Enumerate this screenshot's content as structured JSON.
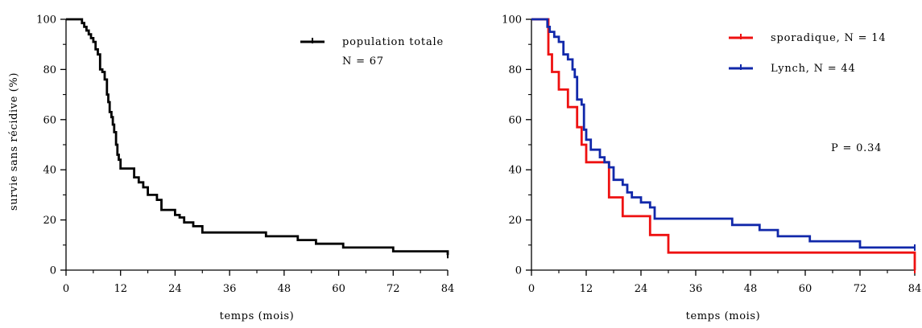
{
  "chart_data": [
    {
      "type": "line",
      "step": true,
      "title": "",
      "xlabel": "temps (mois)",
      "ylabel": "survie sans récidive (%)",
      "xlim": [
        0,
        84
      ],
      "ylim": [
        0,
        100
      ],
      "xticks": [
        "0",
        "12",
        "24",
        "36",
        "48",
        "60",
        "72",
        "84"
      ],
      "yticks": [
        "0",
        "20",
        "40",
        "60",
        "80",
        "100"
      ],
      "legend_position": "top-right",
      "annotation": "",
      "series": [
        {
          "name": "population totale",
          "name_line2": "N = 67",
          "color": "#000000",
          "x": [
            0,
            3,
            3.5,
            4,
            4.5,
            5,
            5.5,
            6,
            6.5,
            7,
            7.5,
            8,
            8.5,
            9,
            9.3,
            9.6,
            10,
            10.3,
            10.6,
            11,
            11.3,
            11.6,
            12,
            12.5,
            15,
            16,
            17,
            18,
            20,
            21,
            24,
            25,
            26,
            28,
            30,
            44,
            51,
            55,
            61,
            72,
            84
          ],
          "y": [
            100,
            100,
            98.5,
            97,
            95.5,
            94,
            92.5,
            91,
            88,
            86,
            80,
            79,
            76,
            70,
            67,
            63,
            61,
            58,
            55,
            50,
            46,
            44,
            40.5,
            40.5,
            37,
            35,
            33,
            30,
            28,
            24,
            22,
            21,
            19,
            17.5,
            15,
            13.5,
            12,
            10.5,
            9,
            7.5,
            6
          ]
        }
      ]
    },
    {
      "type": "line",
      "step": true,
      "title": "",
      "xlabel": "temps (mois)",
      "ylabel": "",
      "xlim": [
        0,
        84
      ],
      "ylim": [
        0,
        100
      ],
      "xticks": [
        "0",
        "12",
        "24",
        "36",
        "48",
        "60",
        "72",
        "84"
      ],
      "yticks": [
        "0",
        "20",
        "40",
        "60",
        "80",
        "100"
      ],
      "legend_position": "top-right",
      "annotation": "P = 0.34",
      "series": [
        {
          "name": "sporadique, N = 14",
          "color": "#ee1111",
          "x": [
            0,
            3,
            3.7,
            4.5,
            6,
            8,
            10,
            11,
            12,
            16,
            17,
            20,
            26,
            30,
            84
          ],
          "y": [
            100,
            100,
            86,
            79,
            72,
            65,
            57,
            50,
            43,
            43,
            29,
            21.5,
            14,
            7,
            0
          ]
        },
        {
          "name": "Lynch, N = 44",
          "color": "#1128aa",
          "x": [
            0,
            3,
            3.5,
            4,
            5,
            6,
            7,
            8,
            9,
            9.5,
            10,
            11,
            11.5,
            12,
            13,
            15,
            16,
            17,
            18,
            20,
            21,
            22,
            24,
            26,
            27,
            44,
            50,
            54,
            61,
            72,
            84
          ],
          "y": [
            100,
            100,
            97,
            95,
            93,
            91,
            86,
            84,
            80,
            77,
            68,
            66,
            56,
            52,
            48,
            45,
            43,
            41,
            36,
            34,
            31,
            29,
            27,
            25,
            20.5,
            18,
            16,
            13.5,
            11.5,
            9,
            9
          ]
        }
      ]
    }
  ]
}
